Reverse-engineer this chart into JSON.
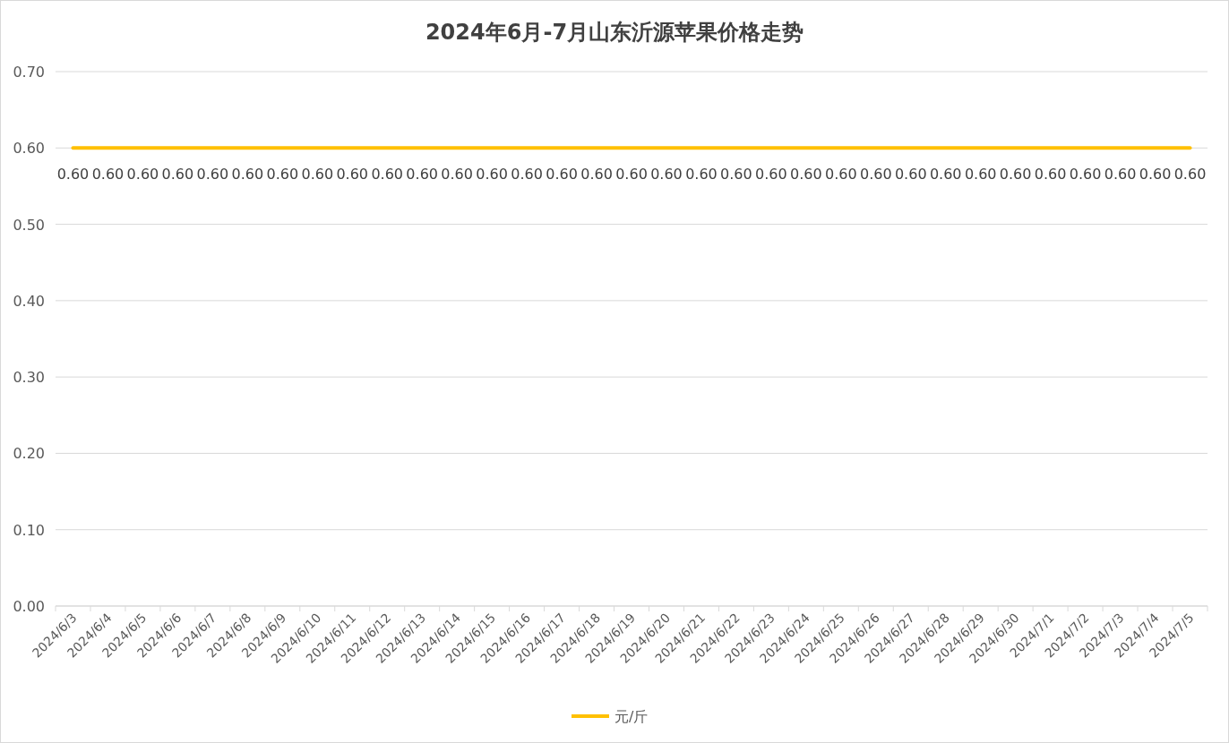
{
  "chart_data": {
    "type": "line",
    "title": "2024年6月-7月山东沂源苹果价格走势",
    "categories": [
      "2024/6/3",
      "2024/6/4",
      "2024/6/5",
      "2024/6/6",
      "2024/6/7",
      "2024/6/8",
      "2024/6/9",
      "2024/6/10",
      "2024/6/11",
      "2024/6/12",
      "2024/6/13",
      "2024/6/14",
      "2024/6/15",
      "2024/6/16",
      "2024/6/17",
      "2024/6/18",
      "2024/6/19",
      "2024/6/20",
      "2024/6/21",
      "2024/6/22",
      "2024/6/23",
      "2024/6/24",
      "2024/6/25",
      "2024/6/26",
      "2024/6/27",
      "2024/6/28",
      "2024/6/29",
      "2024/6/30",
      "2024/7/1",
      "2024/7/2",
      "2024/7/3",
      "2024/7/4",
      "2024/7/5"
    ],
    "series": [
      {
        "name": "元/斤",
        "color": "#ffc000",
        "values": [
          0.6,
          0.6,
          0.6,
          0.6,
          0.6,
          0.6,
          0.6,
          0.6,
          0.6,
          0.6,
          0.6,
          0.6,
          0.6,
          0.6,
          0.6,
          0.6,
          0.6,
          0.6,
          0.6,
          0.6,
          0.6,
          0.6,
          0.6,
          0.6,
          0.6,
          0.6,
          0.6,
          0.6,
          0.6,
          0.6,
          0.6,
          0.6,
          0.6
        ],
        "value_labels": [
          "0.60",
          "0.60",
          "0.60",
          "0.60",
          "0.60",
          "0.60",
          "0.60",
          "0.60",
          "0.60",
          "0.60",
          "0.60",
          "0.60",
          "0.60",
          "0.60",
          "0.60",
          "0.60",
          "0.60",
          "0.60",
          "0.60",
          "0.60",
          "0.60",
          "0.60",
          "0.60",
          "0.60",
          "0.60",
          "0.60",
          "0.60",
          "0.60",
          "0.60",
          "0.60",
          "0.60",
          "0.60",
          "0.60"
        ]
      }
    ],
    "ylim": [
      0,
      0.7
    ],
    "yticks": [
      {
        "value": 0,
        "label": "0.00"
      },
      {
        "value": 0.1,
        "label": "0.10"
      },
      {
        "value": 0.2,
        "label": "0.20"
      },
      {
        "value": 0.3,
        "label": "0.30"
      },
      {
        "value": 0.4,
        "label": "0.40"
      },
      {
        "value": 0.5,
        "label": "0.50"
      },
      {
        "value": 0.6,
        "label": "0.60"
      },
      {
        "value": 0.7,
        "label": "0.70"
      }
    ],
    "grid": "y",
    "legend": "bottom",
    "marker": "none",
    "line_style": "solid"
  }
}
